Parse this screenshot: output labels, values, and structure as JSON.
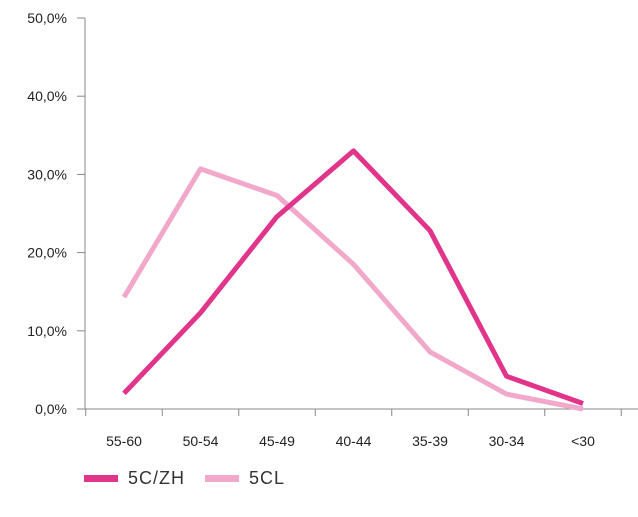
{
  "chart_data": {
    "type": "line",
    "categories": [
      "55-60",
      "50-54",
      "45-49",
      "40-44",
      "35-39",
      "30-34",
      "<30"
    ],
    "y_tick_labels": [
      "0,0%",
      "10,0%",
      "20,0%",
      "30,0%",
      "40,0%",
      "50,0%"
    ],
    "y_ticks": [
      0,
      10,
      20,
      30,
      40,
      50
    ],
    "ylim": [
      0,
      50
    ],
    "grid": false,
    "legend_position": "bottom-left",
    "series": [
      {
        "name": "5C/ZH",
        "color": "#e0358a",
        "values": [
          2.0,
          12.3,
          24.6,
          33.0,
          22.8,
          4.2,
          0.7
        ]
      },
      {
        "name": "5CL",
        "color": "#f2a8cb",
        "values": [
          14.3,
          30.7,
          27.3,
          18.5,
          7.3,
          1.9,
          0.0
        ]
      }
    ]
  }
}
